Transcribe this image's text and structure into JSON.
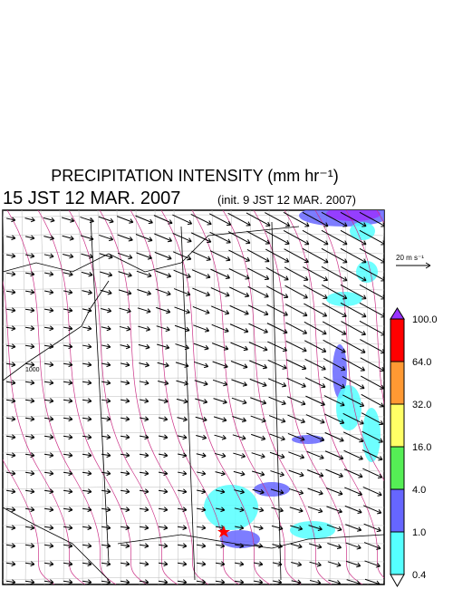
{
  "header": {
    "title": "PRECIPITATION INTENSITY (mm hr⁻¹)",
    "valid_time": "15 JST 12 MAR. 2007",
    "init_time": "(init. 9 JST 12 MAR. 2007)"
  },
  "map": {
    "contour_label": "1000"
  },
  "vector_legend": {
    "label": "20 m s⁻¹"
  },
  "colorbar": {
    "levels": [
      "100.0",
      "64.0",
      "32.0",
      "16.0",
      "4.0",
      "1.0",
      "0.4"
    ],
    "colors": [
      "#ff0000",
      "#ff9933",
      "#ffff66",
      "#55ee55",
      "#6666ff",
      "#55ffff"
    ],
    "over_color": "#9933ff",
    "under_color": "#ffffff"
  }
}
